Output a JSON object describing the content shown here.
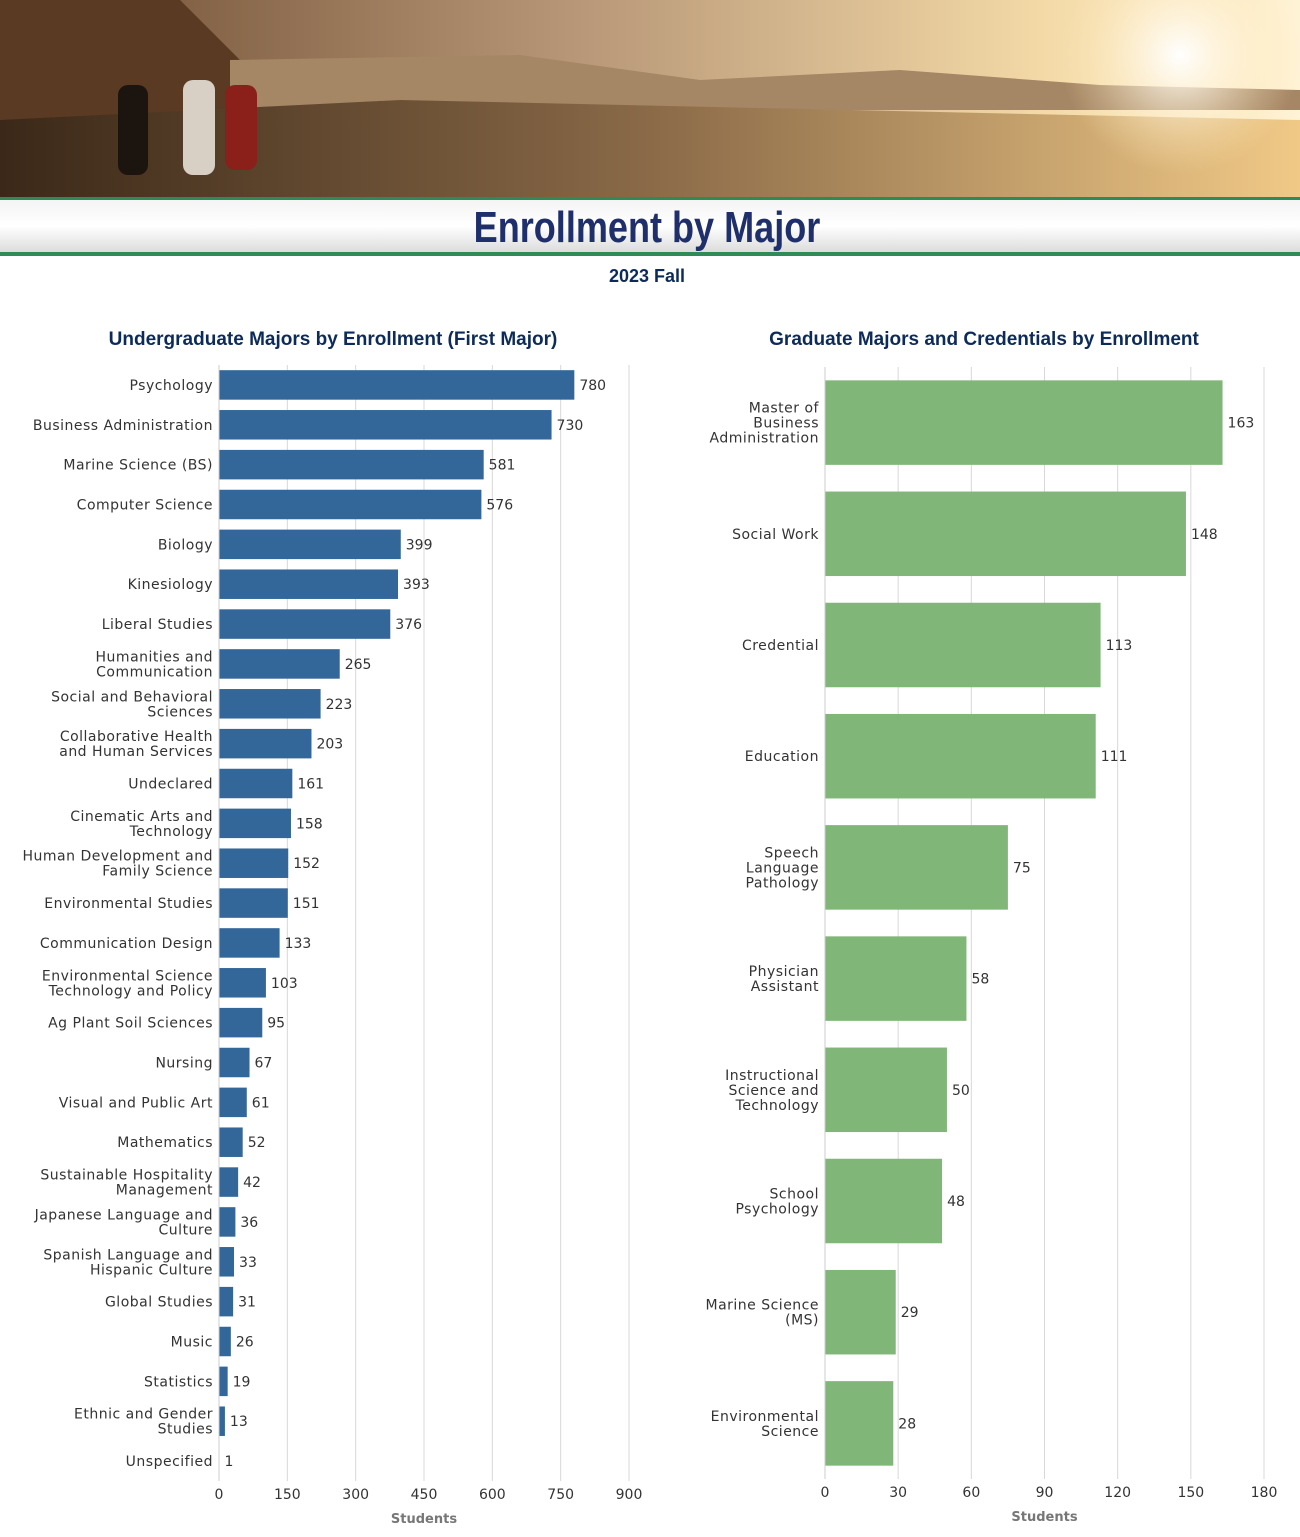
{
  "header": {
    "title": "Enrollment by Major",
    "subtitle": "2023 Fall"
  },
  "chart_data": [
    {
      "type": "hbar",
      "title": "Undergraduate Majors by Enrollment (First Major)",
      "x_label": "Students",
      "color": "#336699",
      "categories": [
        "Psychology",
        "Business Administration",
        "Marine Science (BS)",
        "Computer Science",
        "Biology",
        "Kinesiology",
        "Liberal Studies",
        "Humanities and Communication",
        "Social and Behavioral Sciences",
        "Collaborative Health and Human Services",
        "Undeclared",
        "Cinematic Arts and Technology",
        "Human Development and Family Science",
        "Environmental Studies",
        "Communication Design",
        "Environmental Science Technology and Policy",
        "Ag Plant Soil Sciences",
        "Nursing",
        "Visual and Public Art",
        "Mathematics",
        "Sustainable Hospitality Management",
        "Japanese Language and Culture",
        "Spanish Language and Hispanic Culture",
        "Global Studies",
        "Music",
        "Statistics",
        "Ethnic and Gender Studies",
        "Unspecified"
      ],
      "values": [
        780,
        730,
        581,
        576,
        399,
        393,
        376,
        265,
        223,
        203,
        161,
        158,
        152,
        151,
        133,
        103,
        95,
        67,
        61,
        52,
        42,
        36,
        33,
        31,
        26,
        19,
        13,
        1
      ],
      "xlim": [
        0,
        900
      ],
      "xticks": [
        0,
        150,
        300,
        450,
        600,
        750,
        900
      ],
      "grid": true
    },
    {
      "type": "hbar",
      "title": "Graduate Majors and Credentials by Enrollment",
      "x_label": "Students",
      "color": "#80b678",
      "categories": [
        "Master of Business Administration",
        "Social Work",
        "Credential",
        "Education",
        "Speech Language Pathology",
        "Physician Assistant",
        "Instructional Science and Technology",
        "School Psychology",
        "Marine Science (MS)",
        "Environmental Science"
      ],
      "values": [
        163,
        148,
        113,
        111,
        75,
        58,
        50,
        48,
        29,
        28
      ],
      "xlim": [
        0,
        180
      ],
      "xticks": [
        0,
        30,
        60,
        90,
        120,
        150,
        180
      ],
      "grid": true
    }
  ]
}
